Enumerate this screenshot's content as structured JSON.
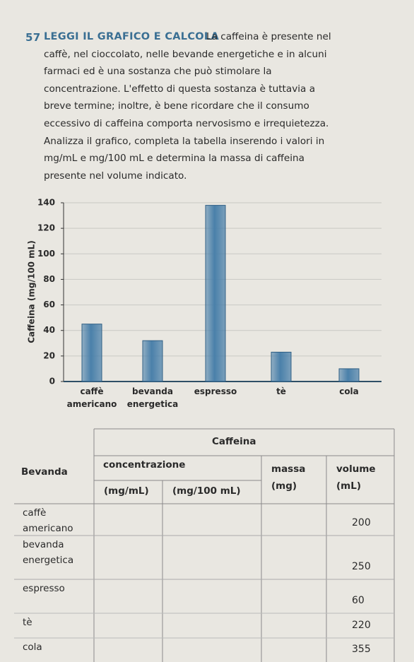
{
  "exercise": {
    "number": "57",
    "heading": "LEGGI IL GRAFICO E CALCOLA",
    "lines": [
      "La caffeina è presente nel",
      "caffè, nel cioccolato, nelle bevande energetiche e in alcuni",
      "farmaci ed è una sostanza che può stimolare la",
      "concentrazione. L'effetto di questa sostanza è tuttavia a",
      "breve termine; inoltre, è bene ricordare che il consumo",
      "eccessivo di caffeina comporta nervosismo e irrequietezza.",
      "Analizza il grafico, completa la tabella inserendo i valori in",
      "mg/mL e mg/100 mL e determina la massa di caffeina",
      "presente nel volume indicato."
    ]
  },
  "chart_data": {
    "type": "bar",
    "ylabel": "Caffeina (mg/100 mL)",
    "categories": [
      "caffè\namericano",
      "bevanda\nenergetica",
      "espresso",
      "tè",
      "cola"
    ],
    "values": [
      45,
      32,
      138,
      23,
      10
    ],
    "color": "#4a80aa",
    "ylim": [
      0,
      140
    ],
    "yticks": [
      0,
      20,
      40,
      60,
      80,
      100,
      120,
      140
    ],
    "grid": true
  },
  "table": {
    "bevanda": "Bevanda",
    "caffeina": "Caffeina",
    "concentrazione": "concentrazione",
    "unit_mg_ml": "(mg/mL)",
    "unit_mg_100ml": "(mg/100 mL)",
    "massa": "massa\n(mg)",
    "volume": "volume\n(mL)",
    "rows": [
      {
        "bevanda": "caffè\namericano",
        "volume": 200
      },
      {
        "bevanda": "bevanda\nenergetica",
        "volume": 250
      },
      {
        "bevanda": "espresso",
        "volume": 60
      },
      {
        "bevanda": "tè",
        "volume": 220
      },
      {
        "bevanda": "cola",
        "volume": 355
      }
    ]
  }
}
